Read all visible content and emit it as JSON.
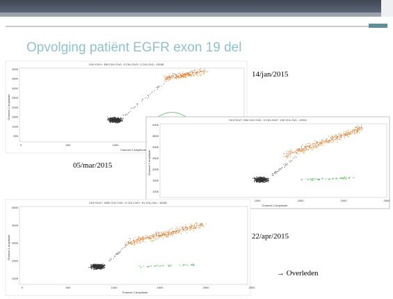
{
  "title": "Opvolging patiënt EGFR exon 19 del",
  "dates": [
    "14/jan/2015",
    "05/mar/2015",
    "22/apr/2015"
  ],
  "note": "→ Overleden",
  "plots": [
    {
      "header": "Ch1+Ch2+: 390 Ch1+Ch2-: 0 Ch1-Ch2+: 3 Ch1-Ch2-: 15108",
      "y_label": "Channel 1 Amplitude",
      "x_label": "Channel 2 Amplitude",
      "yticks": [
        "4000",
        "3500",
        "3000",
        "2500",
        "2000",
        "1500",
        "1000",
        "500"
      ],
      "xticks": [
        "0",
        "500",
        "1000"
      ]
    },
    {
      "header": "Ch1+Ch2+: 834 Ch1+Ch2-: 0 Ch1-Ch2+: 130 Ch1-Ch2-: 13912",
      "y_label": "Channel 1 Amplitude",
      "x_label": "Channel 2 Amplitude",
      "yticks": [
        "4000",
        "3500",
        "3000",
        "2500",
        "2000",
        "1500",
        "1000"
      ],
      "xticks": [
        "1000",
        "1500",
        "2000",
        "2500"
      ]
    },
    {
      "header": "Ch1+Ch2+: 3052 Ch1+Ch2-: 0 Ch1-Ch2+: 51 Ch1-Ch2-: 15402",
      "y_label": "Channel 1 Amplitude",
      "x_label": "Channel 2 Amplitude",
      "yticks": [
        "5000",
        "4000",
        "3000",
        "2000",
        "1000"
      ],
      "xticks": [
        "0",
        "500",
        "1000",
        "1500",
        "2000",
        "2500"
      ]
    }
  ]
}
